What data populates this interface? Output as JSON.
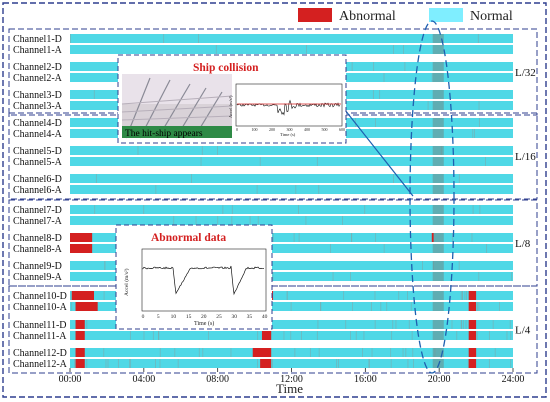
{
  "chart_data": {
    "type": "heatmap",
    "xlabel": "Time",
    "x_ticks": [
      "00:00",
      "04:00",
      "08:00",
      "12:00",
      "16:00",
      "20:00",
      "24:00"
    ],
    "x_range_hours": [
      0,
      24
    ],
    "legend": {
      "placement": "top-right",
      "entries": [
        "Abnormal",
        "Normal"
      ]
    },
    "colors": {
      "abnormal": "#d42020",
      "normal": "#4fd8e6",
      "frame": "#2f3f8f",
      "dark_band": "#6e8a86"
    },
    "channels": [
      "Channel1-D",
      "Channel1-A",
      "Channel2-D",
      "Channel2-A",
      "Channel3-D",
      "Channel3-A",
      "Channel4-D",
      "Channel4-A",
      "Channel5-D",
      "Channel5-A",
      "Channel6-D",
      "Channel6-A",
      "Channel7-D",
      "Channel7-A",
      "Channel8-D",
      "Channel8-A",
      "Channel9-D",
      "Channel9-A",
      "Channel10-D",
      "Channel10-A",
      "Channel11-D",
      "Channel11-A",
      "Channel12-D",
      "Channel12-A"
    ],
    "groups": [
      {
        "label": "L/32",
        "channels": [
          0,
          5
        ]
      },
      {
        "label": "L/16",
        "channels": [
          6,
          11
        ]
      },
      {
        "label": "L/8",
        "channels": [
          12,
          17
        ]
      },
      {
        "label": "L/4",
        "channels": [
          18,
          23
        ]
      }
    ],
    "abnormal_intervals_hours": {
      "Channel8-D": [
        [
          0.0,
          1.2
        ],
        [
          19.6,
          19.7
        ]
      ],
      "Channel8-A": [
        [
          0.0,
          1.2
        ]
      ],
      "Channel10-D": [
        [
          0.1,
          1.3
        ],
        [
          10.0,
          11.0
        ],
        [
          21.6,
          22.0
        ]
      ],
      "Channel10-A": [
        [
          0.3,
          1.5
        ],
        [
          21.6,
          22.0
        ]
      ],
      "Channel11-D": [
        [
          0.3,
          0.8
        ],
        [
          9.9,
          10.9
        ],
        [
          21.6,
          22.0
        ]
      ],
      "Channel11-A": [
        [
          0.3,
          0.8
        ],
        [
          10.4,
          10.9
        ],
        [
          21.6,
          22.0
        ]
      ],
      "Channel12-D": [
        [
          0.3,
          0.8
        ],
        [
          9.9,
          10.9
        ],
        [
          21.6,
          22.0
        ]
      ],
      "Channel12-A": [
        [
          0.3,
          0.8
        ],
        [
          10.3,
          10.9
        ],
        [
          21.6,
          22.0
        ]
      ]
    },
    "annotations": {
      "ship_collision": {
        "title": "Ship collision",
        "photo_caption": "The hit-ship appears",
        "ylabel": "Accel (m/s²)",
        "xlabel": "Time (s)",
        "x_ticks": [
          "0",
          "100",
          "200",
          "300",
          "400",
          "500",
          "600"
        ]
      },
      "abnormal_data": {
        "title": "Abnormal data",
        "ylabel": "Accel (m/s²)",
        "xlabel": "Time (s)",
        "x_ticks": [
          "0",
          "5",
          "10",
          "15",
          "20",
          "25",
          "30",
          "35",
          "40"
        ]
      },
      "highlight_time_hours": 20.0
    }
  }
}
